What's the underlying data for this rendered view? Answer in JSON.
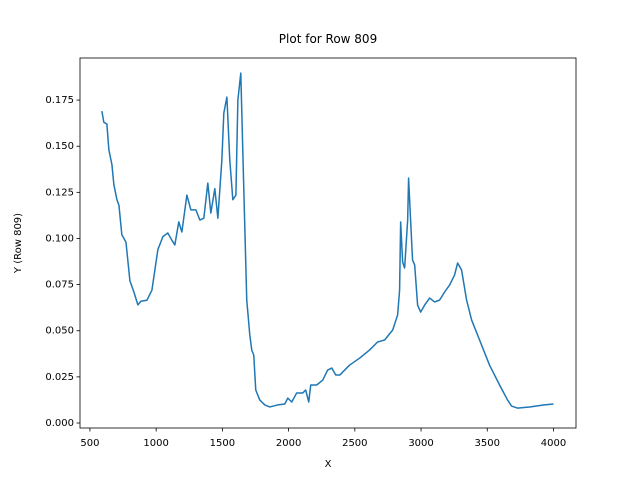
{
  "chart_data": {
    "type": "line",
    "title": "Plot for Row 809",
    "x_label": "X",
    "y_label": "Y (Row 809)",
    "color": "#1f77b4",
    "x": [
      590,
      605,
      628,
      643,
      666,
      681,
      704,
      719,
      741,
      772,
      802,
      832,
      862,
      885,
      930,
      968,
      1013,
      1051,
      1088,
      1119,
      1141,
      1171,
      1194,
      1232,
      1262,
      1300,
      1330,
      1360,
      1390,
      1413,
      1443,
      1466,
      1496,
      1511,
      1534,
      1556,
      1579,
      1602,
      1617,
      1639,
      1662,
      1684,
      1707,
      1722,
      1737,
      1752,
      1782,
      1820,
      1858,
      1918,
      1971,
      1994,
      2024,
      2061,
      2107,
      2129,
      2152,
      2167,
      2212,
      2258,
      2295,
      2326,
      2356,
      2386,
      2461,
      2537,
      2612,
      2672,
      2725,
      2786,
      2823,
      2838,
      2846,
      2861,
      2876,
      2899,
      2906,
      2921,
      2936,
      2952,
      2974,
      2997,
      3027,
      3065,
      3102,
      3140,
      3178,
      3216,
      3253,
      3276,
      3306,
      3344,
      3382,
      3442,
      3517,
      3593,
      3653,
      3683,
      3728,
      3819,
      3932,
      4000
    ],
    "values": [
      0.169,
      0.163,
      0.162,
      0.148,
      0.14,
      0.129,
      0.121,
      0.118,
      0.102,
      0.098,
      0.077,
      0.071,
      0.064,
      0.066,
      0.0665,
      0.072,
      0.094,
      0.101,
      0.103,
      0.099,
      0.0965,
      0.109,
      0.1035,
      0.1235,
      0.1155,
      0.1155,
      0.11,
      0.111,
      0.13,
      0.1138,
      0.127,
      0.111,
      0.1425,
      0.168,
      0.1766,
      0.1425,
      0.121,
      0.1235,
      0.175,
      0.1896,
      0.126,
      0.0666,
      0.0477,
      0.0395,
      0.0368,
      0.0179,
      0.0125,
      0.0098,
      0.0087,
      0.0098,
      0.0103,
      0.0135,
      0.0114,
      0.0163,
      0.0163,
      0.0179,
      0.0114,
      0.0206,
      0.0206,
      0.0233,
      0.0287,
      0.0298,
      0.026,
      0.026,
      0.0314,
      0.0352,
      0.0396,
      0.0439,
      0.045,
      0.0504,
      0.0585,
      0.072,
      0.1089,
      0.0872,
      0.084,
      0.11,
      0.1327,
      0.11,
      0.0883,
      0.0856,
      0.0639,
      0.0601,
      0.0639,
      0.0677,
      0.0656,
      0.0666,
      0.071,
      0.0748,
      0.0802,
      0.0867,
      0.0829,
      0.0666,
      0.0558,
      0.045,
      0.0314,
      0.0206,
      0.0125,
      0.0092,
      0.0081,
      0.0087,
      0.0098,
      0.0103
    ],
    "xlim": [
      425,
      4170
    ],
    "ylim": [
      -0.0027,
      0.1978
    ],
    "xticks": [
      500,
      1000,
      1500,
      2000,
      2500,
      3000,
      3500,
      4000
    ],
    "yticks": [
      {
        "value": 0,
        "label": "0.000"
      },
      {
        "value": 0.025,
        "label": "0.025"
      },
      {
        "value": 0.05,
        "label": "0.050"
      },
      {
        "value": 0.075,
        "label": "0.075"
      },
      {
        "value": 0.1,
        "label": "0.100"
      },
      {
        "value": 0.125,
        "label": "0.125"
      },
      {
        "value": 0.15,
        "label": "0.150"
      },
      {
        "value": 0.175,
        "label": "0.175"
      }
    ]
  }
}
